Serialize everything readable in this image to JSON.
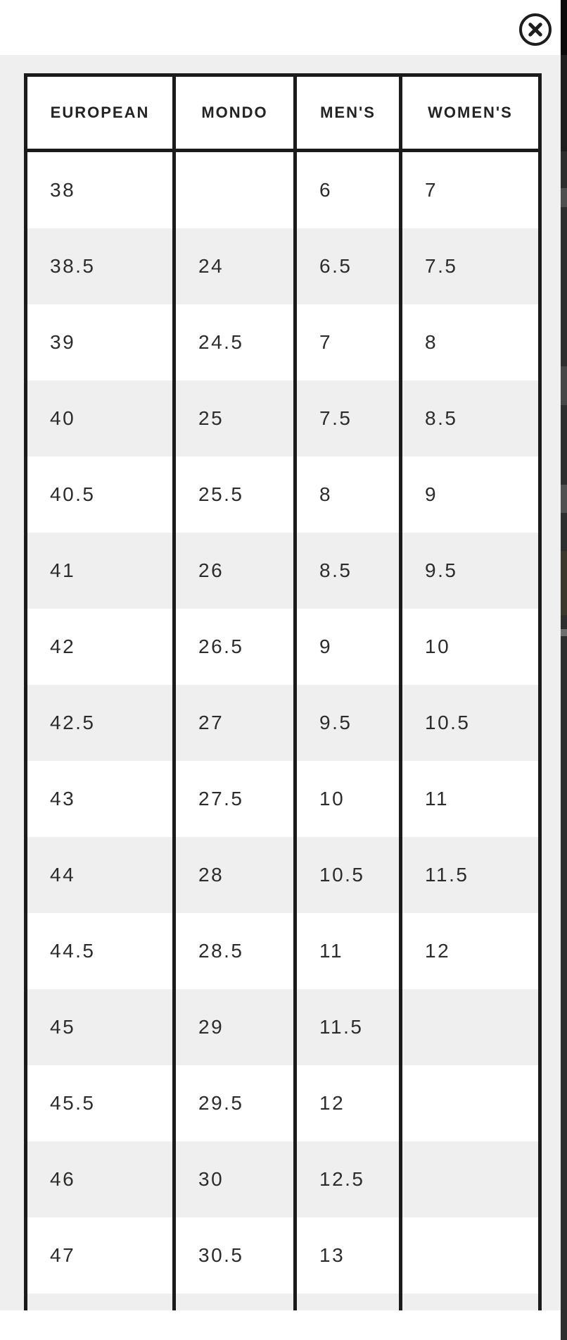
{
  "modal": {
    "close_icon": "circle-x",
    "header_background": "#ffffff",
    "body_background": "#f0efef"
  },
  "size_chart": {
    "columns": [
      "EUROPEAN",
      "MONDO",
      "MEN'S",
      "WOMEN'S"
    ],
    "rows": [
      [
        "38",
        "",
        "6",
        "7"
      ],
      [
        "38.5",
        "24",
        "6.5",
        "7.5"
      ],
      [
        "39",
        "24.5",
        "7",
        "8"
      ],
      [
        "40",
        "25",
        "7.5",
        "8.5"
      ],
      [
        "40.5",
        "25.5",
        "8",
        "9"
      ],
      [
        "41",
        "26",
        "8.5",
        "9.5"
      ],
      [
        "42",
        "26.5",
        "9",
        "10"
      ],
      [
        "42.5",
        "27",
        "9.5",
        "10.5"
      ],
      [
        "43",
        "27.5",
        "10",
        "11"
      ],
      [
        "44",
        "28",
        "10.5",
        "11.5"
      ],
      [
        "44.5",
        "28.5",
        "11",
        "12"
      ],
      [
        "45",
        "29",
        "11.5",
        ""
      ],
      [
        "45.5",
        "29.5",
        "12",
        ""
      ],
      [
        "46",
        "30",
        "12.5",
        ""
      ],
      [
        "47",
        "30.5",
        "13",
        ""
      ],
      [
        "",
        "",
        "",
        ""
      ]
    ]
  },
  "colors": {
    "table_border": "#1b1b1b",
    "row_stripe": "#f0efef",
    "cell_text": "#2d2c2b",
    "header_text": "#232323",
    "icon": "#1d1d1d",
    "page_edge_dark": "#2e2e2e"
  }
}
